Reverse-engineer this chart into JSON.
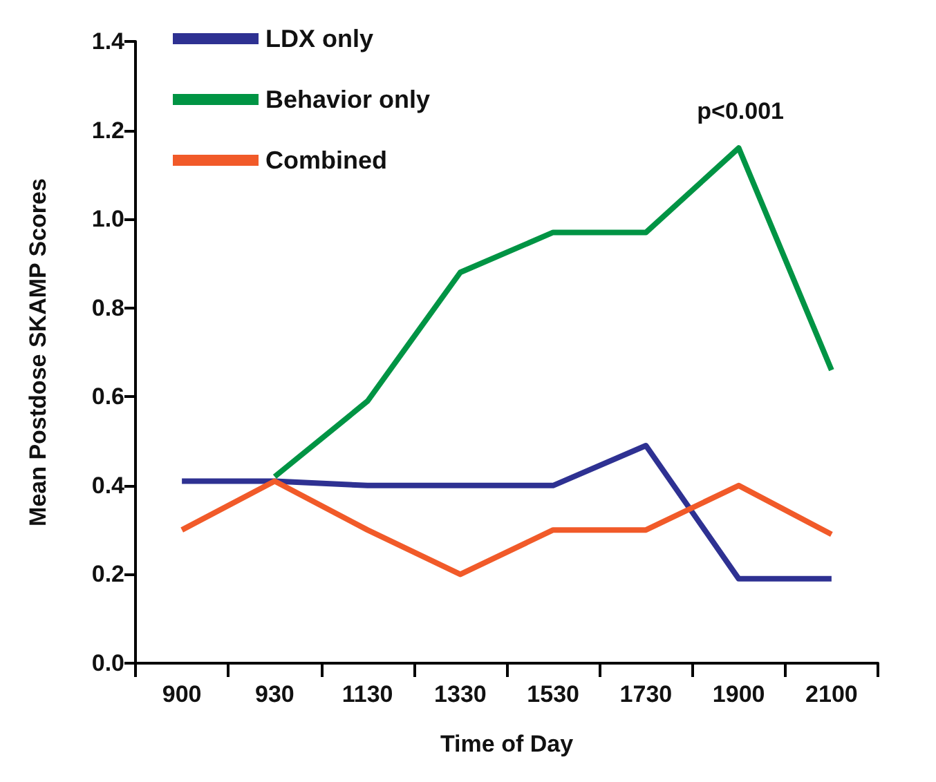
{
  "chart_data": {
    "type": "line",
    "xlabel": "Time of Day",
    "ylabel": "Mean Postdose SKAMP Scores",
    "categories": [
      "900",
      "930",
      "1130",
      "1330",
      "1530",
      "1730",
      "1900",
      "2100"
    ],
    "series": [
      {
        "name": "LDX only",
        "color": "#2e3192",
        "values": [
          0.41,
          0.41,
          0.4,
          0.4,
          0.4,
          0.49,
          0.19,
          0.19
        ]
      },
      {
        "name": "Behavior only",
        "color": "#009444",
        "values": [
          null,
          0.42,
          0.59,
          0.88,
          0.97,
          0.97,
          1.16,
          0.66
        ]
      },
      {
        "name": "Combined",
        "color": "#f15a29",
        "values": [
          0.3,
          0.41,
          0.3,
          0.2,
          0.3,
          0.3,
          0.4,
          0.29
        ]
      }
    ],
    "ylim": [
      0,
      1.4
    ],
    "yticks": [
      {
        "value": 0,
        "label": "0.0"
      },
      0.2,
      0.4,
      0.6,
      0.8,
      {
        "value": 1,
        "label": "1.0"
      },
      1.2,
      1.4
    ],
    "annotations": [
      "p<0.001"
    ],
    "legend": "top left",
    "grid": false,
    "marker": "none",
    "line_style": "solid"
  }
}
